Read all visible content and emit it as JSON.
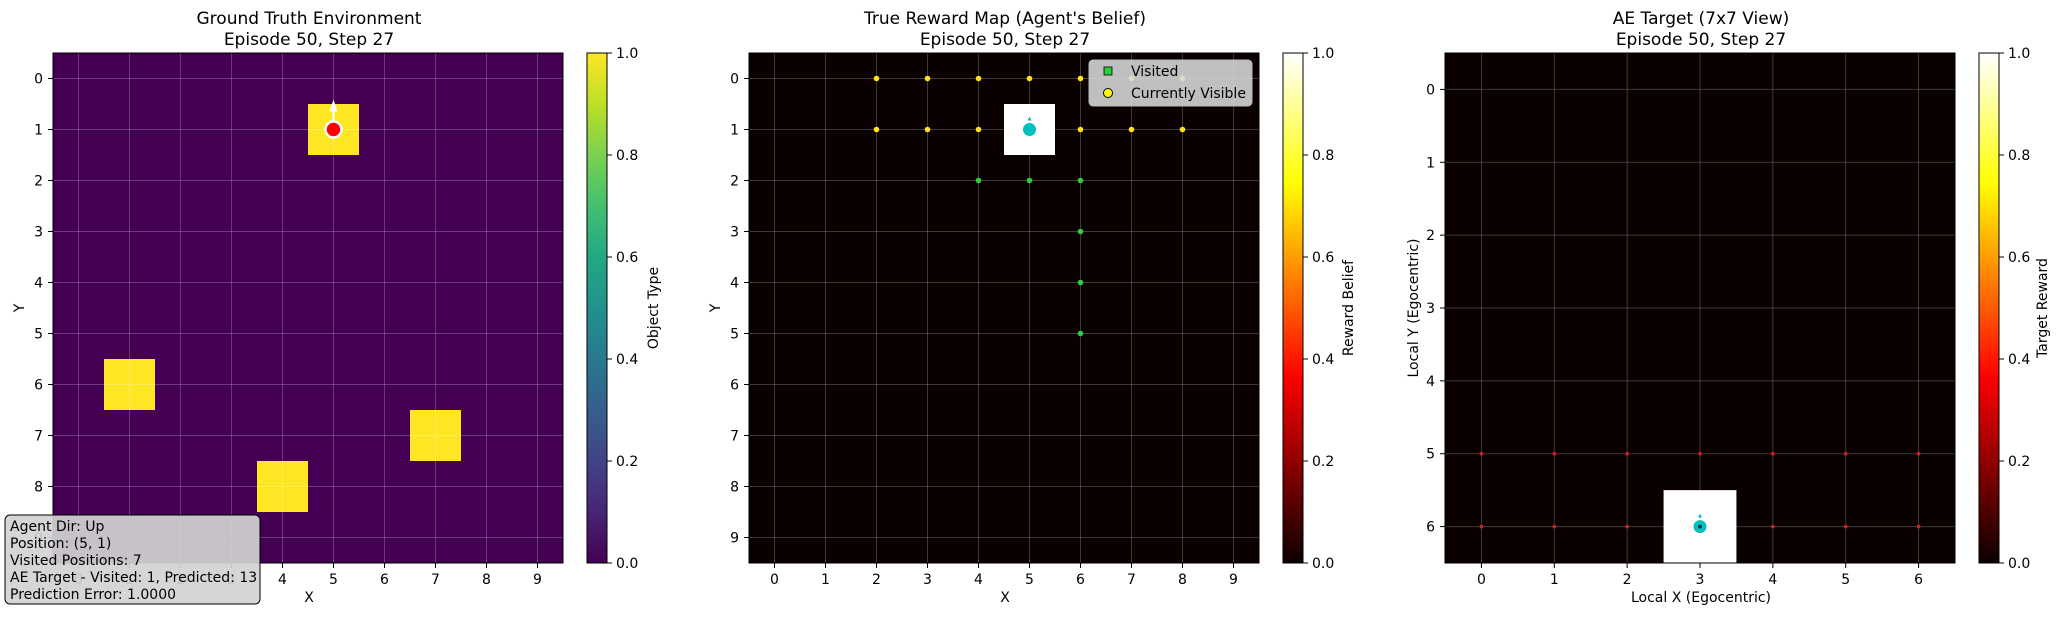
{
  "info_box": {
    "lines": [
      "Agent Dir: Up",
      "Position: (5, 1)",
      "Visited Positions: 7",
      "AE Target - Visited: 1, Predicted: 13",
      "Prediction Error: 1.0000"
    ]
  },
  "chart_data": [
    {
      "type": "heatmap",
      "title": "Ground Truth Environment",
      "subtitle": "Episode 50, Step 27",
      "xlabel": "X",
      "ylabel": "Y",
      "x_ticks": [
        "0",
        "1",
        "2",
        "3",
        "4",
        "5",
        "6",
        "7",
        "8",
        "9"
      ],
      "y_ticks": [
        "0",
        "1",
        "2",
        "3",
        "4",
        "5",
        "6",
        "7",
        "8",
        "9"
      ],
      "colormap": "viridis",
      "background_color": "#440154",
      "object_color": "#fde725",
      "grid": true,
      "cells": [
        {
          "x": 5,
          "y": 1,
          "value": 1.0
        },
        {
          "x": 1,
          "y": 6,
          "value": 1.0
        },
        {
          "x": 7,
          "y": 7,
          "value": 1.0
        },
        {
          "x": 4,
          "y": 8,
          "value": 1.0
        }
      ],
      "agent": {
        "x": 5,
        "y": 1,
        "dir": "up",
        "color": "#ff0000"
      },
      "colorbar": {
        "label": "Object Type",
        "ticks": [
          "0.0",
          "0.2",
          "0.4",
          "0.6",
          "0.8",
          "1.0"
        ],
        "range": [
          0,
          1
        ]
      }
    },
    {
      "type": "heatmap",
      "title": "True Reward Map (Agent's Belief)",
      "subtitle": "Episode 50, Step 27",
      "xlabel": "X",
      "ylabel": "Y",
      "x_ticks": [
        "0",
        "1",
        "2",
        "3",
        "4",
        "5",
        "6",
        "7",
        "8",
        "9"
      ],
      "y_ticks": [
        "0",
        "1",
        "2",
        "3",
        "4",
        "5",
        "6",
        "7",
        "8",
        "9"
      ],
      "colormap": "hot",
      "background_color": "#0b0000",
      "grid": true,
      "cells": [
        {
          "x": 5,
          "y": 1,
          "value": 1.0
        }
      ],
      "visited": [
        {
          "x": 4,
          "y": 2
        },
        {
          "x": 5,
          "y": 2
        },
        {
          "x": 6,
          "y": 2
        },
        {
          "x": 6,
          "y": 3
        },
        {
          "x": 6,
          "y": 4
        },
        {
          "x": 6,
          "y": 5
        }
      ],
      "visible": [
        {
          "x": 2,
          "y": 0
        },
        {
          "x": 3,
          "y": 0
        },
        {
          "x": 4,
          "y": 0
        },
        {
          "x": 5,
          "y": 0
        },
        {
          "x": 6,
          "y": 0
        },
        {
          "x": 7,
          "y": 0
        },
        {
          "x": 8,
          "y": 0
        },
        {
          "x": 2,
          "y": 1
        },
        {
          "x": 3,
          "y": 1
        },
        {
          "x": 4,
          "y": 1
        },
        {
          "x": 6,
          "y": 1
        },
        {
          "x": 7,
          "y": 1
        },
        {
          "x": 8,
          "y": 1
        }
      ],
      "agent": {
        "x": 5,
        "y": 1,
        "dir": "up",
        "color": "#00bfbf"
      },
      "legend": {
        "placement": "top-right",
        "entries": [
          {
            "label": "Visited",
            "marker": "square",
            "color": "#2ecc40"
          },
          {
            "label": "Currently Visible",
            "marker": "circle",
            "color": "#ffff00"
          }
        ]
      },
      "colorbar": {
        "label": "Reward Belief",
        "ticks": [
          "0.0",
          "0.2",
          "0.4",
          "0.6",
          "0.8",
          "1.0"
        ],
        "range": [
          0,
          1
        ]
      }
    },
    {
      "type": "heatmap",
      "title": "AE Target (7x7 View)",
      "subtitle": "Episode 50, Step 27",
      "xlabel": "Local X (Egocentric)",
      "ylabel": "Local Y (Egocentric)",
      "x_ticks": [
        "0",
        "1",
        "2",
        "3",
        "4",
        "5",
        "6"
      ],
      "y_ticks": [
        "0",
        "1",
        "2",
        "3",
        "4",
        "5",
        "6"
      ],
      "colormap": "hot",
      "background_color": "#0b0000",
      "grid": true,
      "cells": [
        {
          "x": 3,
          "y": 6,
          "value": 1.0
        }
      ],
      "predicted": [
        {
          "x": 0,
          "y": 5
        },
        {
          "x": 1,
          "y": 5
        },
        {
          "x": 2,
          "y": 5
        },
        {
          "x": 3,
          "y": 5
        },
        {
          "x": 4,
          "y": 5
        },
        {
          "x": 5,
          "y": 5
        },
        {
          "x": 6,
          "y": 5
        },
        {
          "x": 0,
          "y": 6
        },
        {
          "x": 1,
          "y": 6
        },
        {
          "x": 2,
          "y": 6
        },
        {
          "x": 4,
          "y": 6
        },
        {
          "x": 5,
          "y": 6
        },
        {
          "x": 6,
          "y": 6
        }
      ],
      "agent": {
        "x": 3,
        "y": 6,
        "dir": "up",
        "color": "#00bfbf"
      },
      "colorbar": {
        "label": "Target Reward",
        "ticks": [
          "0.0",
          "0.2",
          "0.4",
          "0.6",
          "0.8",
          "1.0"
        ],
        "range": [
          0,
          1
        ]
      }
    }
  ]
}
